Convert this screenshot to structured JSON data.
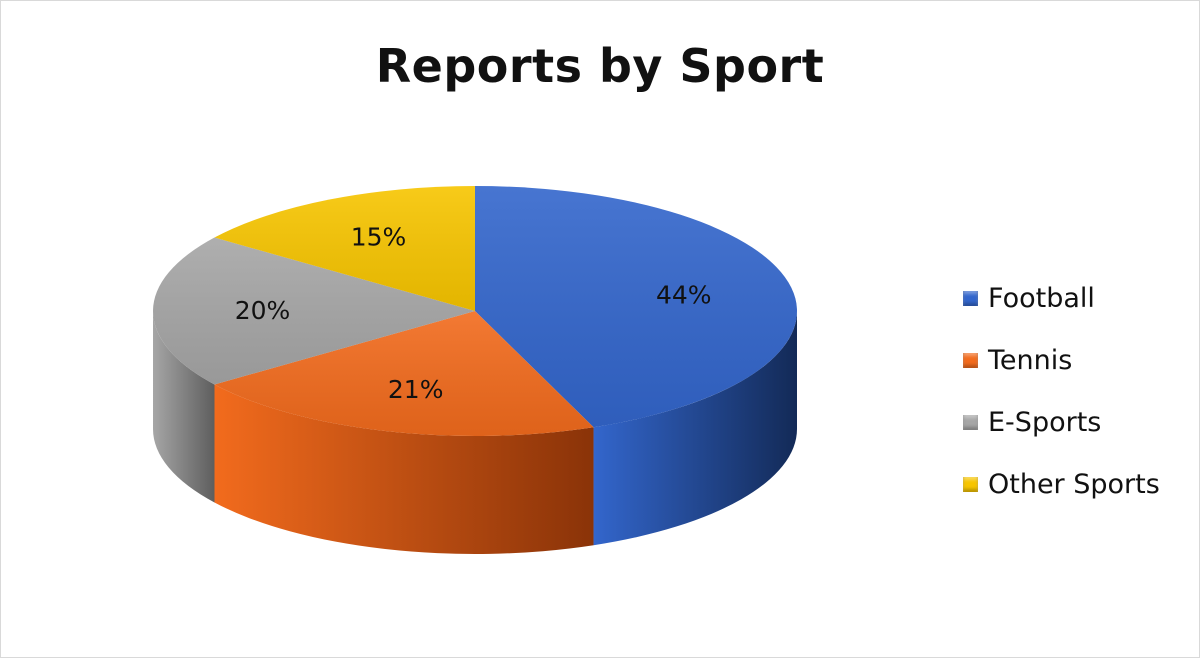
{
  "chart_data": {
    "type": "pie",
    "title": "Reports by Sport",
    "style": "3d",
    "legend": "right",
    "slices": [
      {
        "label": "Football",
        "value": 44,
        "display": "44%",
        "color": "#3366cc",
        "side_color": "#132a57"
      },
      {
        "label": "Tennis",
        "value": 21,
        "display": "21%",
        "color": "#f26b1d",
        "side_color": "#8a3308"
      },
      {
        "label": "E-Sports",
        "value": 20,
        "display": "20%",
        "color": "#a6a6a6",
        "side_color": "#5e5e5e"
      },
      {
        "label": "Other Sports",
        "value": 15,
        "display": "15%",
        "color": "#f7c500",
        "side_color": "#9a7a00"
      }
    ]
  }
}
